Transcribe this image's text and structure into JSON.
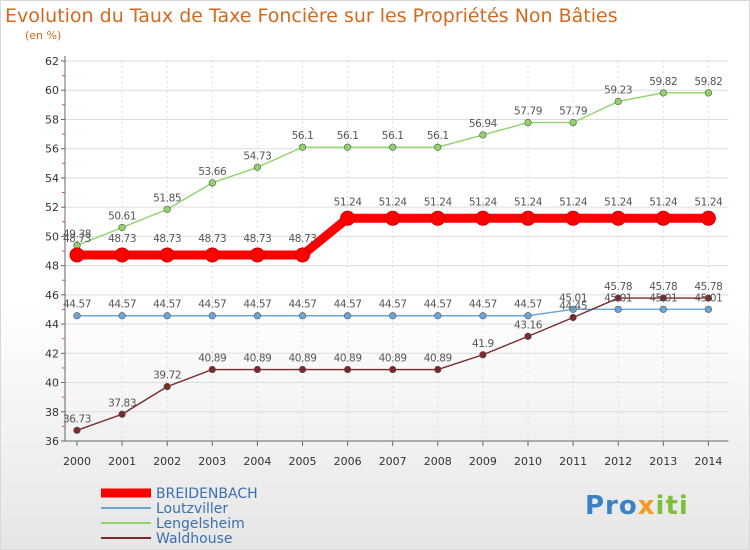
{
  "title": "Evolution du Taux de Taxe Foncière sur les Propriétés Non Bâties",
  "subtitle": "(en %)",
  "logo": {
    "part1": "Pro",
    "part2": "x",
    "part3": "iti"
  },
  "chart_data": {
    "type": "line",
    "ylim": [
      36,
      62
    ],
    "yticks": [
      36,
      38,
      40,
      42,
      44,
      46,
      48,
      50,
      52,
      54,
      56,
      58,
      60,
      62
    ],
    "categories": [
      "2000",
      "2001",
      "2002",
      "2003",
      "2004",
      "2005",
      "2006",
      "2007",
      "2008",
      "2009",
      "2010",
      "2011",
      "2012",
      "2013",
      "2014"
    ],
    "series": [
      {
        "name": "BREIDENBACH",
        "color": "#ff0000",
        "values": [
          48.73,
          48.73,
          48.73,
          48.73,
          48.73,
          48.73,
          51.24,
          51.24,
          51.24,
          51.24,
          51.24,
          51.24,
          51.24,
          51.24,
          51.24
        ],
        "labels": [
          "48.73",
          "48.73",
          "48.73",
          "48.73",
          "48.73",
          "48.73",
          "51.24",
          "51.24",
          "51.24",
          "51.24",
          "51.24",
          "51.24",
          "51.24",
          "51.24",
          "51.24"
        ]
      },
      {
        "name": "Loutzviller",
        "color": "#6ca6d6",
        "values": [
          44.57,
          44.57,
          44.57,
          44.57,
          44.57,
          44.57,
          44.57,
          44.57,
          44.57,
          44.57,
          44.57,
          45.01,
          45.01,
          45.01,
          45.01
        ],
        "labels": [
          "44.57",
          "44.57",
          "44.57",
          "44.57",
          "44.57",
          "44.57",
          "44.57",
          "44.57",
          "44.57",
          "44.57",
          "44.57",
          "45.01",
          "45.01",
          "45.01",
          "45.01"
        ]
      },
      {
        "name": "Lengelsheim",
        "color": "#90d468",
        "values": [
          49.38,
          50.61,
          51.85,
          53.66,
          54.73,
          56.1,
          56.1,
          56.1,
          56.1,
          56.94,
          57.79,
          57.79,
          59.23,
          59.82,
          59.82
        ],
        "labels": [
          "49.38",
          "50.61",
          "51.85",
          "53.66",
          "54.73",
          "56.1",
          "56.1",
          "56.1",
          "56.1",
          "56.94",
          "57.79",
          "57.79",
          "59.23",
          "59.82",
          "59.82"
        ]
      },
      {
        "name": "Waldhouse",
        "color": "#7a2a2a",
        "values": [
          36.73,
          37.83,
          39.72,
          40.89,
          40.89,
          40.89,
          40.89,
          40.89,
          40.89,
          41.9,
          43.16,
          44.45,
          45.78,
          45.78,
          45.78
        ],
        "labels": [
          "36.73",
          "37.83",
          "39.72",
          "40.89",
          "40.89",
          "40.89",
          "40.89",
          "40.89",
          "40.89",
          "41.9",
          "43.16",
          "44.45",
          "45.78",
          "45.78",
          "45.78"
        ]
      }
    ]
  }
}
